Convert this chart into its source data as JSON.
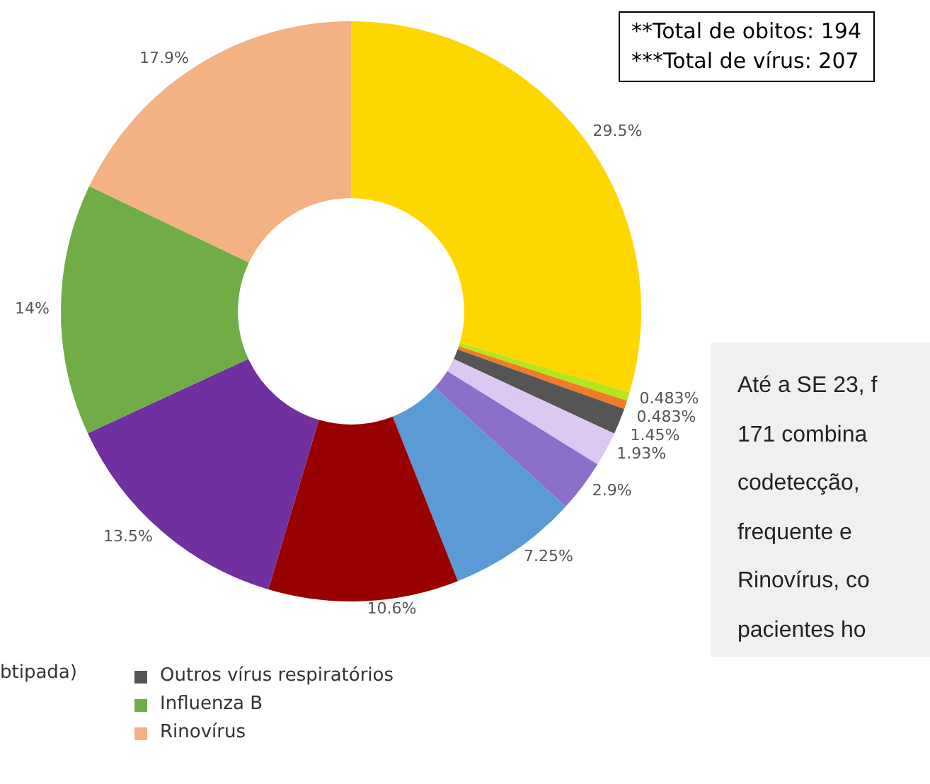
{
  "chart_data": {
    "type": "donut",
    "categories": [
      null,
      null,
      null,
      "Outros vírus respiratórios",
      null,
      null,
      null,
      null,
      null,
      "Influenza B",
      "Rinovírus"
    ],
    "values": [
      29.5,
      0.483,
      0.483,
      1.45,
      1.93,
      2.9,
      7.25,
      10.6,
      13.5,
      14,
      17.9
    ],
    "colors": [
      "#ffd700",
      "#b5e61d",
      "#f07c28",
      "#555555",
      "#dcc8f0",
      "#8b6fc8",
      "#5b9bd5",
      "#990000",
      "#7030a0",
      "#70ad47",
      "#f4b183"
    ],
    "value_labels": [
      "29.5%",
      "0.483%",
      "0.483%",
      "1.45%",
      "1.93%",
      "2.9%",
      "7.25%",
      "10.6%",
      "13.5%",
      "14%",
      "17.9%"
    ],
    "legend": "bottom left",
    "annotations": [
      "**Total de obitos: 194",
      "***Total de vírus: 207",
      "btipada)",
      "Até a SE 23, f",
      "171 combina",
      "codetecção,",
      "frequente e",
      "Rinovírus, co",
      "pacientes ho"
    ]
  }
}
